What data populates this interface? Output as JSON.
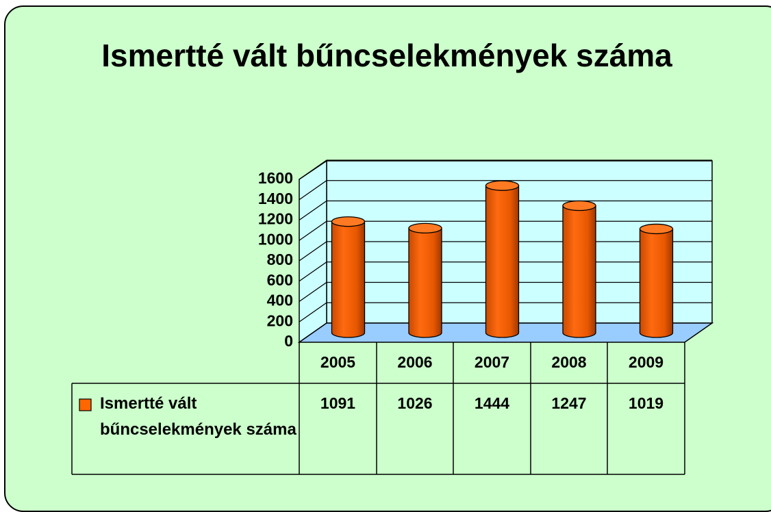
{
  "chart_data": {
    "type": "bar",
    "title": "Ismertté vált bűncselekmények száma",
    "categories": [
      "2005",
      "2006",
      "2007",
      "2008",
      "2009"
    ],
    "series": [
      {
        "name": "Ismertté vált bűncselekmények száma",
        "color": "#ff6600",
        "values": [
          1091,
          1026,
          1444,
          1247,
          1019
        ]
      }
    ],
    "ylim": [
      0,
      1600
    ],
    "yticks": [
      0,
      200,
      400,
      600,
      800,
      1000,
      1200,
      1400,
      1600
    ],
    "grid": true
  }
}
